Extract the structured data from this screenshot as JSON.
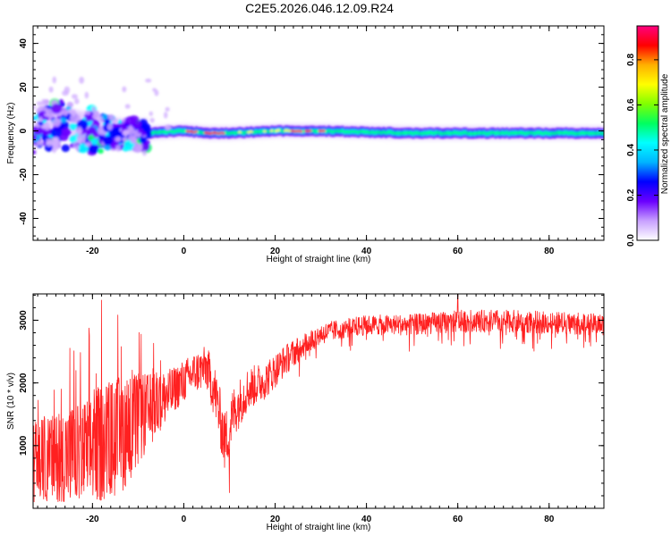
{
  "figure": {
    "title": "C2E5.2026.046.12.09.R24"
  },
  "chart_data": [
    {
      "type": "heatmap",
      "xlabel": "Height of straight line (km)",
      "ylabel": "Frequency (Hz)",
      "xlim": [
        -33,
        92
      ],
      "ylim": [
        -50,
        48
      ],
      "x_ticks": [
        -20,
        0,
        20,
        40,
        60,
        80
      ],
      "y_ticks": [
        -40,
        -20,
        0,
        20,
        40
      ],
      "x_tick_labels": [
        "-20",
        "0",
        "20",
        "40",
        "60",
        "80"
      ],
      "y_tick_labels": [
        "-40",
        "-20",
        "0",
        "20",
        "40"
      ],
      "ridge": [
        {
          "x": -32,
          "y": 2
        },
        {
          "x": -25,
          "y": 3
        },
        {
          "x": -18,
          "y": 0
        },
        {
          "x": -12,
          "y": -2
        },
        {
          "x": -8,
          "y": -1
        },
        {
          "x": 0,
          "y": 0
        },
        {
          "x": 5,
          "y": -1
        },
        {
          "x": 10,
          "y": -1
        },
        {
          "x": 20,
          "y": 0
        },
        {
          "x": 30,
          "y": 0
        },
        {
          "x": 50,
          "y": -1
        },
        {
          "x": 70,
          "y": -1
        },
        {
          "x": 92,
          "y": -1
        }
      ],
      "hot_spots_x": [
        1,
        2,
        5,
        6,
        7,
        8,
        24,
        25,
        27,
        30
      ],
      "colorbar": {
        "label": "Normalized spectral amplitude",
        "range": [
          0.0,
          0.95
        ],
        "ticks": [
          0.0,
          0.2,
          0.4,
          0.6,
          0.8
        ],
        "tick_labels": [
          "0.0",
          "0.2",
          "0.4",
          "0.6",
          "0.8"
        ],
        "colormap": [
          "#ffffff",
          "#c8a0ff",
          "#6a00ff",
          "#0000ff",
          "#00b4ff",
          "#00ffff",
          "#00ff60",
          "#80ff00",
          "#ffff00",
          "#ffb000",
          "#ff0000",
          "#ff007f"
        ]
      },
      "grid": false
    },
    {
      "type": "line",
      "xlabel": "Height of straight line (km)",
      "ylabel": "SNR (10 * v/v)",
      "xlim": [
        -33,
        92
      ],
      "ylim": [
        0,
        3420
      ],
      "x_ticks": [
        -20,
        0,
        20,
        40,
        60,
        80
      ],
      "y_ticks": [
        1000,
        2000,
        3000
      ],
      "x_tick_labels": [
        "-20",
        "0",
        "20",
        "40",
        "60",
        "80"
      ],
      "y_tick_labels": [
        "1000",
        "2000",
        "3000"
      ],
      "line_color": "#ff2020",
      "envelope": [
        {
          "x": -33,
          "mean": 750,
          "amp": 650
        },
        {
          "x": -28,
          "mean": 800,
          "amp": 700
        },
        {
          "x": -22,
          "mean": 900,
          "amp": 800
        },
        {
          "x": -18,
          "mean": 1050,
          "amp": 950
        },
        {
          "x": -14,
          "mean": 1150,
          "amp": 950
        },
        {
          "x": -10,
          "mean": 1400,
          "amp": 750
        },
        {
          "x": -6,
          "mean": 1650,
          "amp": 500
        },
        {
          "x": -2,
          "mean": 1900,
          "amp": 350
        },
        {
          "x": 2,
          "mean": 2150,
          "amp": 330
        },
        {
          "x": 5,
          "mean": 2250,
          "amp": 350
        },
        {
          "x": 7,
          "mean": 1800,
          "amp": 450
        },
        {
          "x": 9,
          "mean": 1050,
          "amp": 500
        },
        {
          "x": 11,
          "mean": 1550,
          "amp": 420
        },
        {
          "x": 14,
          "mean": 1900,
          "amp": 350
        },
        {
          "x": 18,
          "mean": 2050,
          "amp": 300
        },
        {
          "x": 22,
          "mean": 2350,
          "amp": 250
        },
        {
          "x": 26,
          "mean": 2600,
          "amp": 200
        },
        {
          "x": 30,
          "mean": 2780,
          "amp": 170
        },
        {
          "x": 35,
          "mean": 2870,
          "amp": 160
        },
        {
          "x": 40,
          "mean": 2920,
          "amp": 160
        },
        {
          "x": 50,
          "mean": 2930,
          "amp": 170
        },
        {
          "x": 60,
          "mean": 2980,
          "amp": 180
        },
        {
          "x": 70,
          "mean": 2990,
          "amp": 180
        },
        {
          "x": 80,
          "mean": 2960,
          "amp": 180
        },
        {
          "x": 92,
          "mean": 2930,
          "amp": 170
        }
      ],
      "peaks": [
        {
          "x": -18,
          "y": 3320
        },
        {
          "x": 60,
          "y": 3420
        }
      ],
      "dips": [
        {
          "x": 10,
          "y": 250
        }
      ],
      "grid": false
    }
  ]
}
